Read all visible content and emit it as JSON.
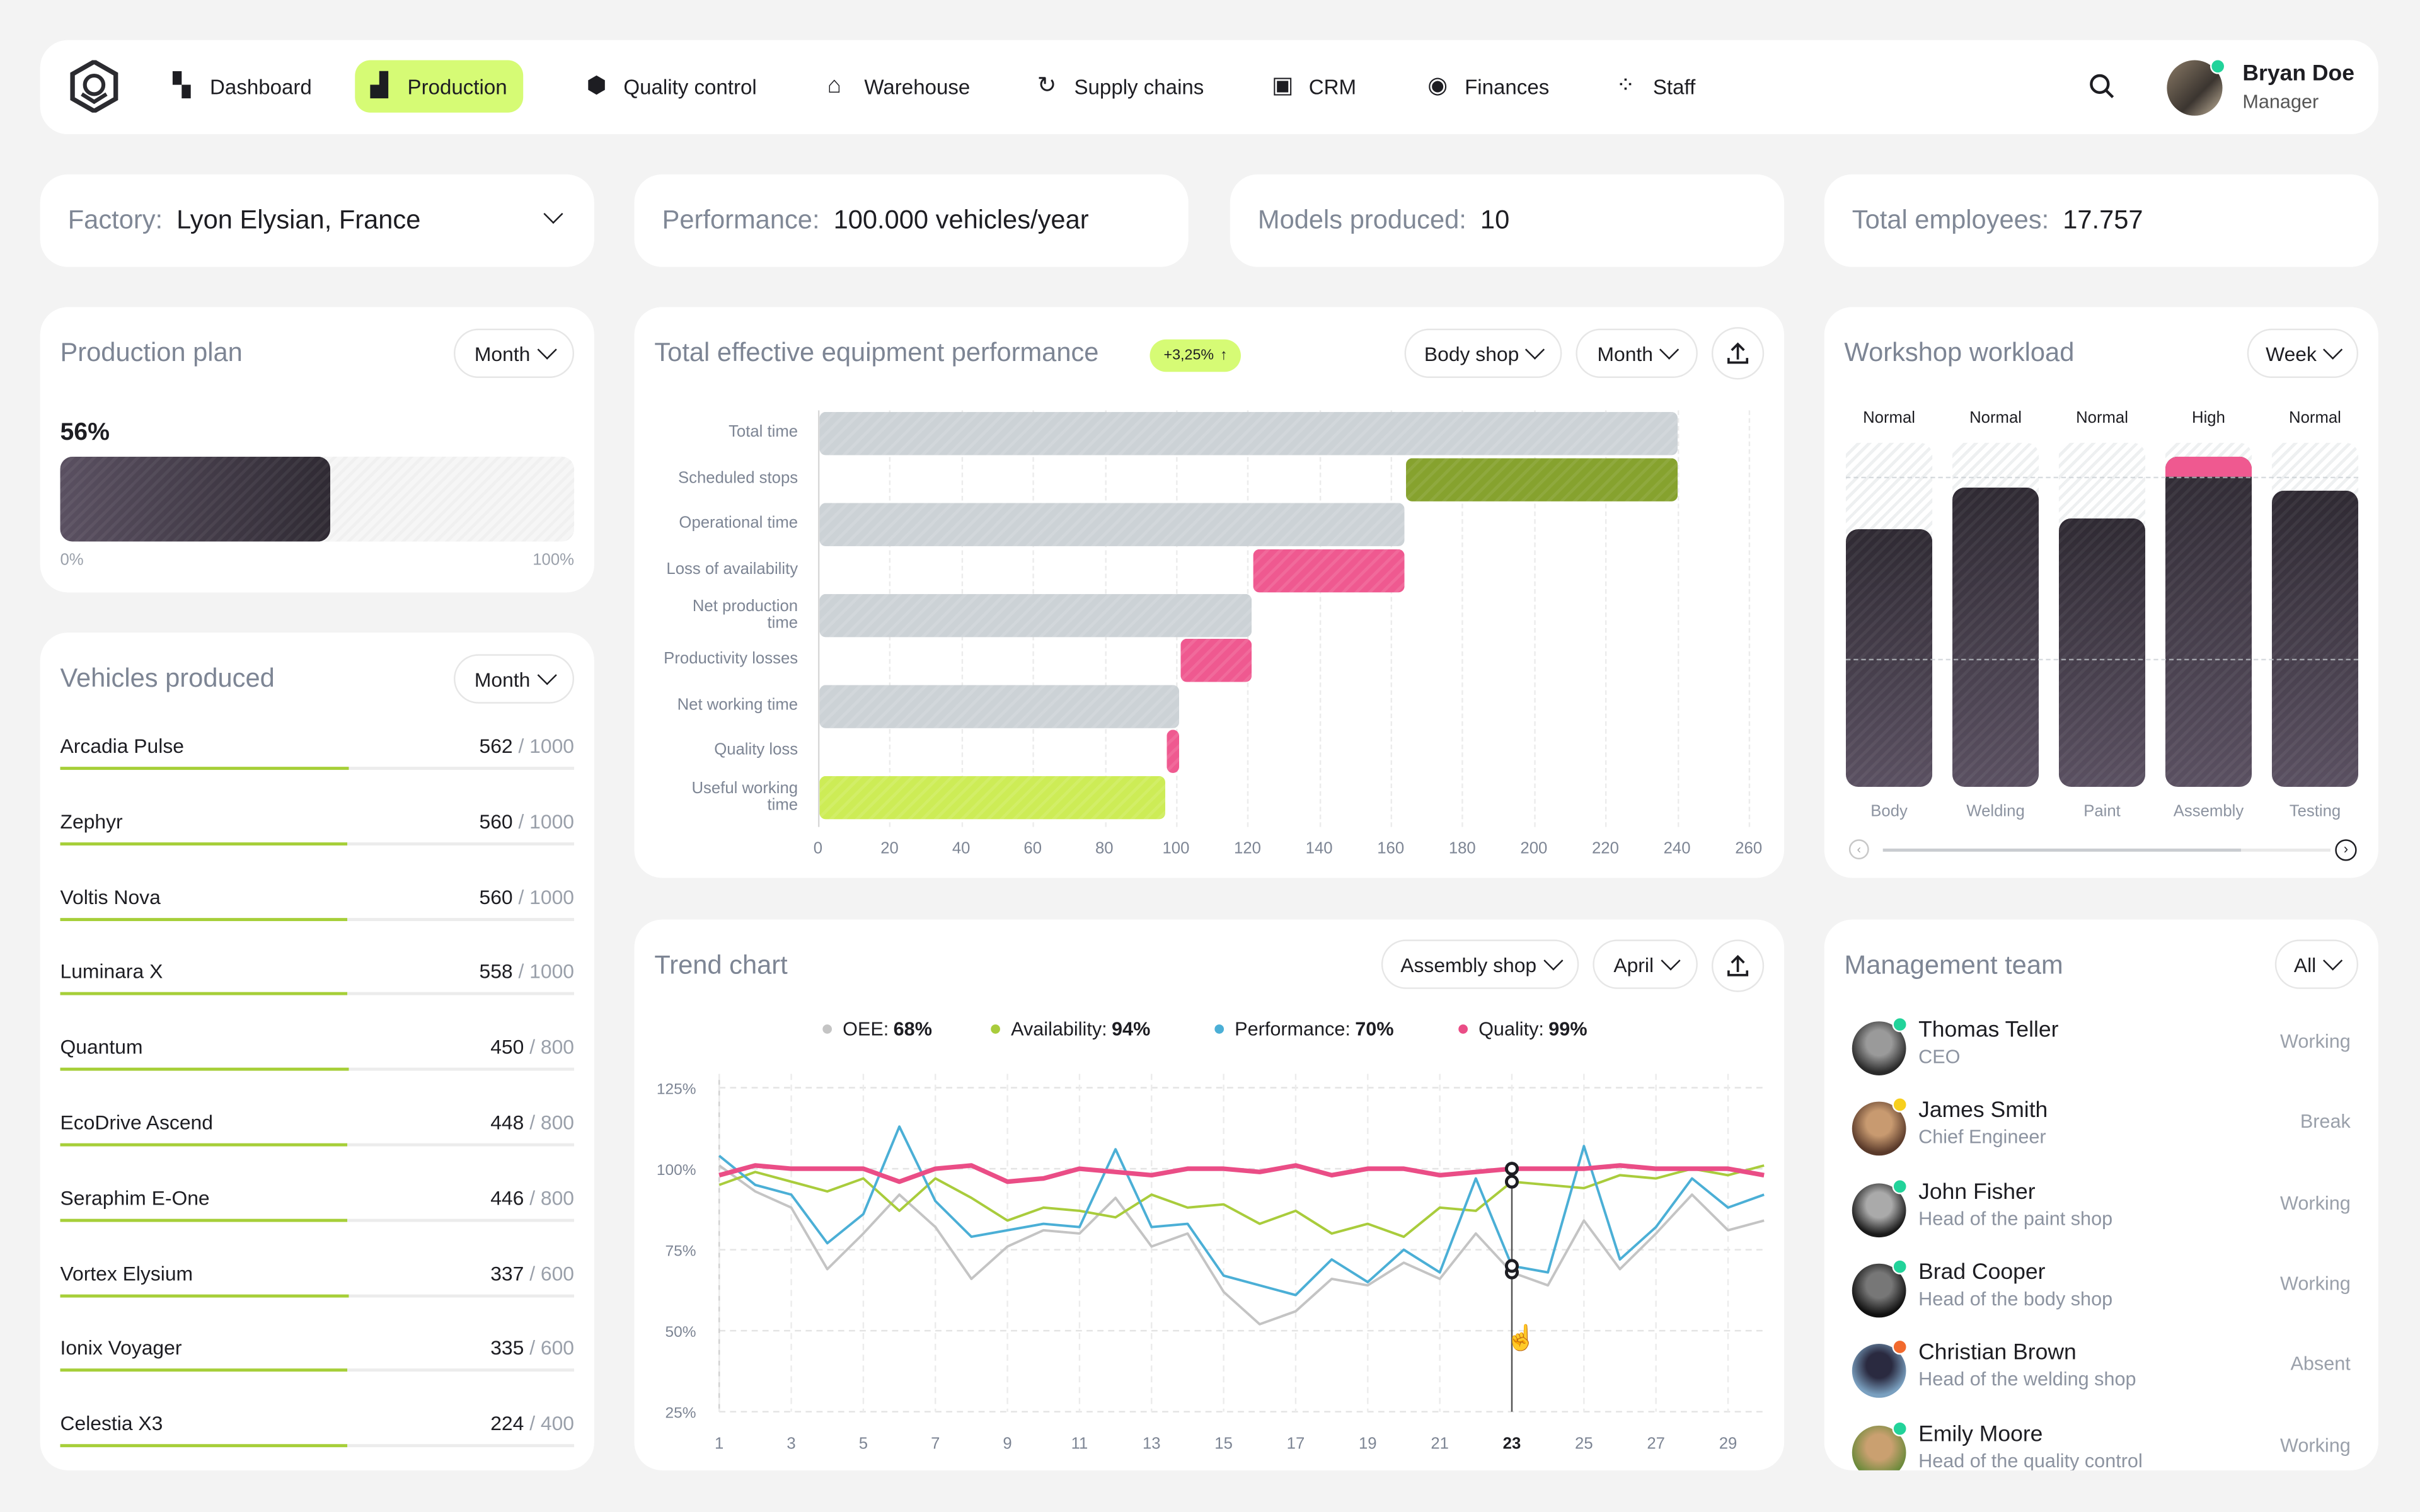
{
  "nav": {
    "items": [
      {
        "label": "Dashboard",
        "icon": "dashboard-icon",
        "active": false
      },
      {
        "label": "Production",
        "icon": "factory-icon",
        "active": true
      },
      {
        "label": "Quality control",
        "icon": "quality-badge-icon",
        "active": false
      },
      {
        "label": "Warehouse",
        "icon": "warehouse-icon",
        "active": false
      },
      {
        "label": "Supply chains",
        "icon": "supply-chain-icon",
        "active": false
      },
      {
        "label": "CRM",
        "icon": "crm-card-icon",
        "active": false
      },
      {
        "label": "Finances",
        "icon": "finances-icon",
        "active": false
      },
      {
        "label": "Staff",
        "icon": "staff-icon",
        "active": false
      }
    ],
    "user": {
      "name": "Bryan Doe",
      "role": "Manager"
    }
  },
  "info": {
    "factory_label": "Factory:",
    "factory_value": "Lyon Elysian,  France",
    "performance_label": "Performance:",
    "performance_value": "100.000 vehicles/year",
    "models_label": "Models produced:",
    "models_value": "10",
    "employees_label": "Total employees:",
    "employees_value": "17.757"
  },
  "production_plan": {
    "title": "Production plan",
    "period": "Month",
    "percent": 56,
    "percent_label": "56%",
    "min_label": "0%",
    "max_label": "100%"
  },
  "vehicles": {
    "title": "Vehicles produced",
    "period": "Month",
    "items": [
      {
        "name": "Arcadia Pulse",
        "value": 562,
        "max": 1000
      },
      {
        "name": "Zephyr",
        "value": 560,
        "max": 1000
      },
      {
        "name": "Voltis Nova",
        "value": 560,
        "max": 1000
      },
      {
        "name": "Luminara X",
        "value": 558,
        "max": 1000
      },
      {
        "name": "Quantum",
        "value": 450,
        "max": 800
      },
      {
        "name": "EcoDrive Ascend",
        "value": 448,
        "max": 800
      },
      {
        "name": "Seraphim E-One",
        "value": 446,
        "max": 800
      },
      {
        "name": "Vortex Elysium",
        "value": 337,
        "max": 600
      },
      {
        "name": "Ionix Voyager",
        "value": 335,
        "max": 600
      },
      {
        "name": "Celestia X3",
        "value": 224,
        "max": 400
      }
    ]
  },
  "oee": {
    "title": "Total effective equipment performance",
    "badge": "+3,25%",
    "shop": "Body shop",
    "period": "Month"
  },
  "workload": {
    "title": "Workshop workload",
    "period": "Week",
    "shops": [
      {
        "name": "Body",
        "status": "Normal",
        "load": 75
      },
      {
        "name": "Welding",
        "status": "Normal",
        "load": 87
      },
      {
        "name": "Paint",
        "status": "Normal",
        "load": 78
      },
      {
        "name": "Assembly",
        "status": "High",
        "load": 96
      },
      {
        "name": "Testing",
        "status": "Normal",
        "load": 86
      }
    ],
    "capacity": 90,
    "scroll_progress": 0.8
  },
  "trend": {
    "title": "Trend chart",
    "shop": "Assembly shop",
    "period": "April"
  },
  "team": {
    "title": "Management team",
    "filter": "All",
    "members": [
      {
        "name": "Thomas Teller",
        "role": "CEO",
        "status": "Working",
        "dot": "#22d39a"
      },
      {
        "name": "James Smith",
        "role": "Chief Engineer",
        "status": "Break",
        "dot": "#f7cf1d"
      },
      {
        "name": "John Fisher",
        "role": "Head of the paint shop",
        "status": "Working",
        "dot": "#22d39a"
      },
      {
        "name": "Brad Cooper",
        "role": "Head of the body shop",
        "status": "Working",
        "dot": "#22d39a"
      },
      {
        "name": "Christian Brown",
        "role": "Head of the welding shop",
        "status": "Absent",
        "dot": "#f26a2e"
      },
      {
        "name": "Emily Moore",
        "role": "Head of the quality control",
        "status": "Working",
        "dot": "#22d39a"
      }
    ]
  },
  "chart_data": [
    {
      "type": "bar",
      "orientation": "horizontal-waterfall",
      "categories": [
        "Total time",
        "Scheduled stops",
        "Operational time",
        "Loss of availability",
        "Net production time",
        "Productivity losses",
        "Net working time",
        "Quality loss",
        "Useful working time"
      ],
      "ranges": [
        [
          0,
          240
        ],
        [
          164,
          240
        ],
        [
          0,
          164
        ],
        [
          121,
          164
        ],
        [
          0,
          121
        ],
        [
          101,
          121
        ],
        [
          0,
          101
        ],
        [
          97,
          101
        ],
        [
          0,
          97
        ]
      ],
      "colors": [
        "#ccd2d6",
        "#86a22e",
        "#ccd2d6",
        "#ef5990",
        "#ccd2d6",
        "#ef5990",
        "#ccd2d6",
        "#ef5990",
        "#cdec56"
      ],
      "xlim": [
        0,
        260
      ],
      "xticks": [
        0,
        20,
        40,
        60,
        80,
        100,
        120,
        140,
        160,
        180,
        200,
        220,
        240,
        260
      ],
      "grid": true
    },
    {
      "type": "line",
      "x": [
        1,
        2,
        3,
        4,
        5,
        6,
        7,
        8,
        9,
        10,
        11,
        12,
        13,
        14,
        15,
        16,
        17,
        18,
        19,
        20,
        21,
        22,
        23,
        24,
        25,
        26,
        27,
        28,
        29,
        30
      ],
      "xticks": [
        1,
        3,
        5,
        7,
        9,
        11,
        13,
        15,
        17,
        19,
        21,
        23,
        25,
        27,
        29
      ],
      "highlight_x": 23,
      "ylim": [
        25,
        125
      ],
      "yticks": [
        25,
        50,
        75,
        100,
        125
      ],
      "ytick_labels": [
        "25%",
        "50%",
        "75%",
        "100%",
        "125%"
      ],
      "legend_position": "top",
      "grid": true,
      "series": [
        {
          "name": "OEE",
          "summary": "68%",
          "color": "#c4c4c4",
          "values": [
            101,
            93,
            88,
            69,
            80,
            92,
            82,
            66,
            76,
            81,
            80,
            91,
            76,
            80,
            62,
            52,
            56,
            66,
            64,
            71,
            66,
            80,
            68,
            64,
            84,
            69,
            80,
            92,
            81,
            84
          ]
        },
        {
          "name": "Availability",
          "summary": "94%",
          "color": "#a9cc3c",
          "values": [
            95,
            99,
            96,
            93,
            97,
            87,
            97,
            91,
            84,
            88,
            87,
            85,
            92,
            88,
            89,
            83,
            87,
            80,
            83,
            79,
            88,
            87,
            96,
            95,
            94,
            98,
            97,
            100,
            98,
            101
          ]
        },
        {
          "name": "Performance",
          "summary": "70%",
          "color": "#4bafd6",
          "values": [
            104,
            95,
            92,
            77,
            86,
            113,
            90,
            79,
            81,
            83,
            82,
            106,
            82,
            83,
            67,
            64,
            61,
            72,
            65,
            75,
            68,
            97,
            70,
            68,
            107,
            72,
            82,
            97,
            88,
            92
          ]
        },
        {
          "name": "Quality",
          "summary": "99%",
          "color": "#ea4d86",
          "values": [
            98,
            101,
            100,
            100,
            100,
            96,
            100,
            101,
            96,
            97,
            100,
            99,
            98,
            100,
            100,
            99,
            101,
            98,
            100,
            100,
            98,
            99,
            100,
            100,
            100,
            101,
            100,
            100,
            100,
            98
          ]
        }
      ]
    }
  ]
}
